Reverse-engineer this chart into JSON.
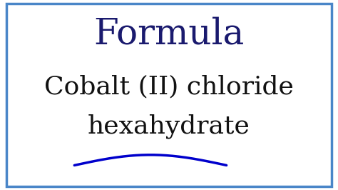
{
  "background_color": "#ffffff",
  "border_color": "#4a86c8",
  "border_linewidth": 2.5,
  "title_text": "Formula",
  "title_color": "#1a1a6e",
  "title_fontsize": 36,
  "title_fontstyle": "normal",
  "body_line1": "Cobalt (II) chloride",
  "body_line2": "hexahydrate",
  "body_color": "#111111",
  "body_fontsize": 26,
  "body_fontweight": "normal",
  "wave_color": "#0000cc",
  "wave_linewidth": 2.5,
  "figsize": [
    4.74,
    2.66
  ],
  "dpi": 100
}
